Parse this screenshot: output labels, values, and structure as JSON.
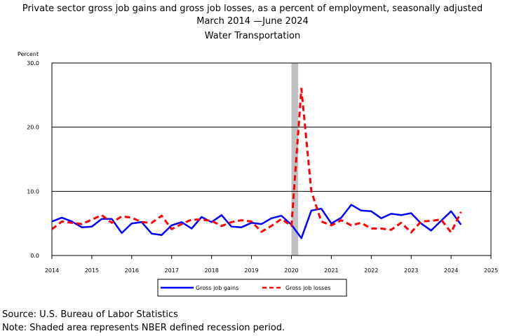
{
  "title": {
    "line1": "Private sector gross job gains and gross job losses, as a percent of employment, seasonally adjusted",
    "line2": "March 2014 —June 2024",
    "line3": "Water Transportation"
  },
  "footer": {
    "source": "Source: U.S. Bureau of Labor Statistics",
    "note": "Note: Shaded area represents NBER defined recession period."
  },
  "chart_data": {
    "type": "line",
    "ylabel": "Percent",
    "xlabel": "",
    "ylim": [
      0,
      30
    ],
    "yticks": [
      "0.0",
      "10.0",
      "20.0",
      "30.0"
    ],
    "xlim": [
      2014,
      2025
    ],
    "xticks": [
      "2014",
      "2015",
      "2016",
      "2017",
      "2018",
      "2019",
      "2020",
      "2021",
      "2022",
      "2023",
      "2024",
      "2025"
    ],
    "grid": "horizontal",
    "legend_position": "bottom",
    "recession": {
      "start": 2020.0,
      "end": 2020.17
    },
    "x": [
      2014.0,
      2014.25,
      2014.5,
      2014.75,
      2015.0,
      2015.25,
      2015.5,
      2015.75,
      2016.0,
      2016.25,
      2016.5,
      2016.75,
      2017.0,
      2017.25,
      2017.5,
      2017.75,
      2018.0,
      2018.25,
      2018.5,
      2018.75,
      2019.0,
      2019.25,
      2019.5,
      2019.75,
      2020.0,
      2020.25,
      2020.5,
      2020.75,
      2021.0,
      2021.25,
      2021.5,
      2021.75,
      2022.0,
      2022.25,
      2022.5,
      2022.75,
      2023.0,
      2023.25,
      2023.5,
      2023.75,
      2024.0,
      2024.25
    ],
    "series": [
      {
        "name": "Gross job gains",
        "color": "#0000ff",
        "dash": "solid",
        "values": [
          5.3,
          5.9,
          5.3,
          4.4,
          4.5,
          5.7,
          5.7,
          3.5,
          5.0,
          5.2,
          3.4,
          3.2,
          4.7,
          5.2,
          4.2,
          6.0,
          5.2,
          6.3,
          4.5,
          4.4,
          5.1,
          4.9,
          5.8,
          6.2,
          4.8,
          2.7,
          7.0,
          7.3,
          5.0,
          5.9,
          7.9,
          7.0,
          6.9,
          5.8,
          6.5,
          6.3,
          6.6,
          5.0,
          3.9,
          5.4,
          6.9,
          4.8
        ]
      },
      {
        "name": "Gross job losses",
        "color": "#ff0000",
        "dash": "dashed",
        "values": [
          4.1,
          5.3,
          5.1,
          4.9,
          5.6,
          6.3,
          5.1,
          6.1,
          5.9,
          5.2,
          5.1,
          6.2,
          4.1,
          4.9,
          5.6,
          5.6,
          5.4,
          4.6,
          5.2,
          5.5,
          5.3,
          3.7,
          4.6,
          5.7,
          4.6,
          26.0,
          10.0,
          5.3,
          4.7,
          5.5,
          4.7,
          5.1,
          4.2,
          4.2,
          4.0,
          5.1,
          3.6,
          5.3,
          5.4,
          5.6,
          3.6,
          6.8
        ]
      }
    ]
  }
}
